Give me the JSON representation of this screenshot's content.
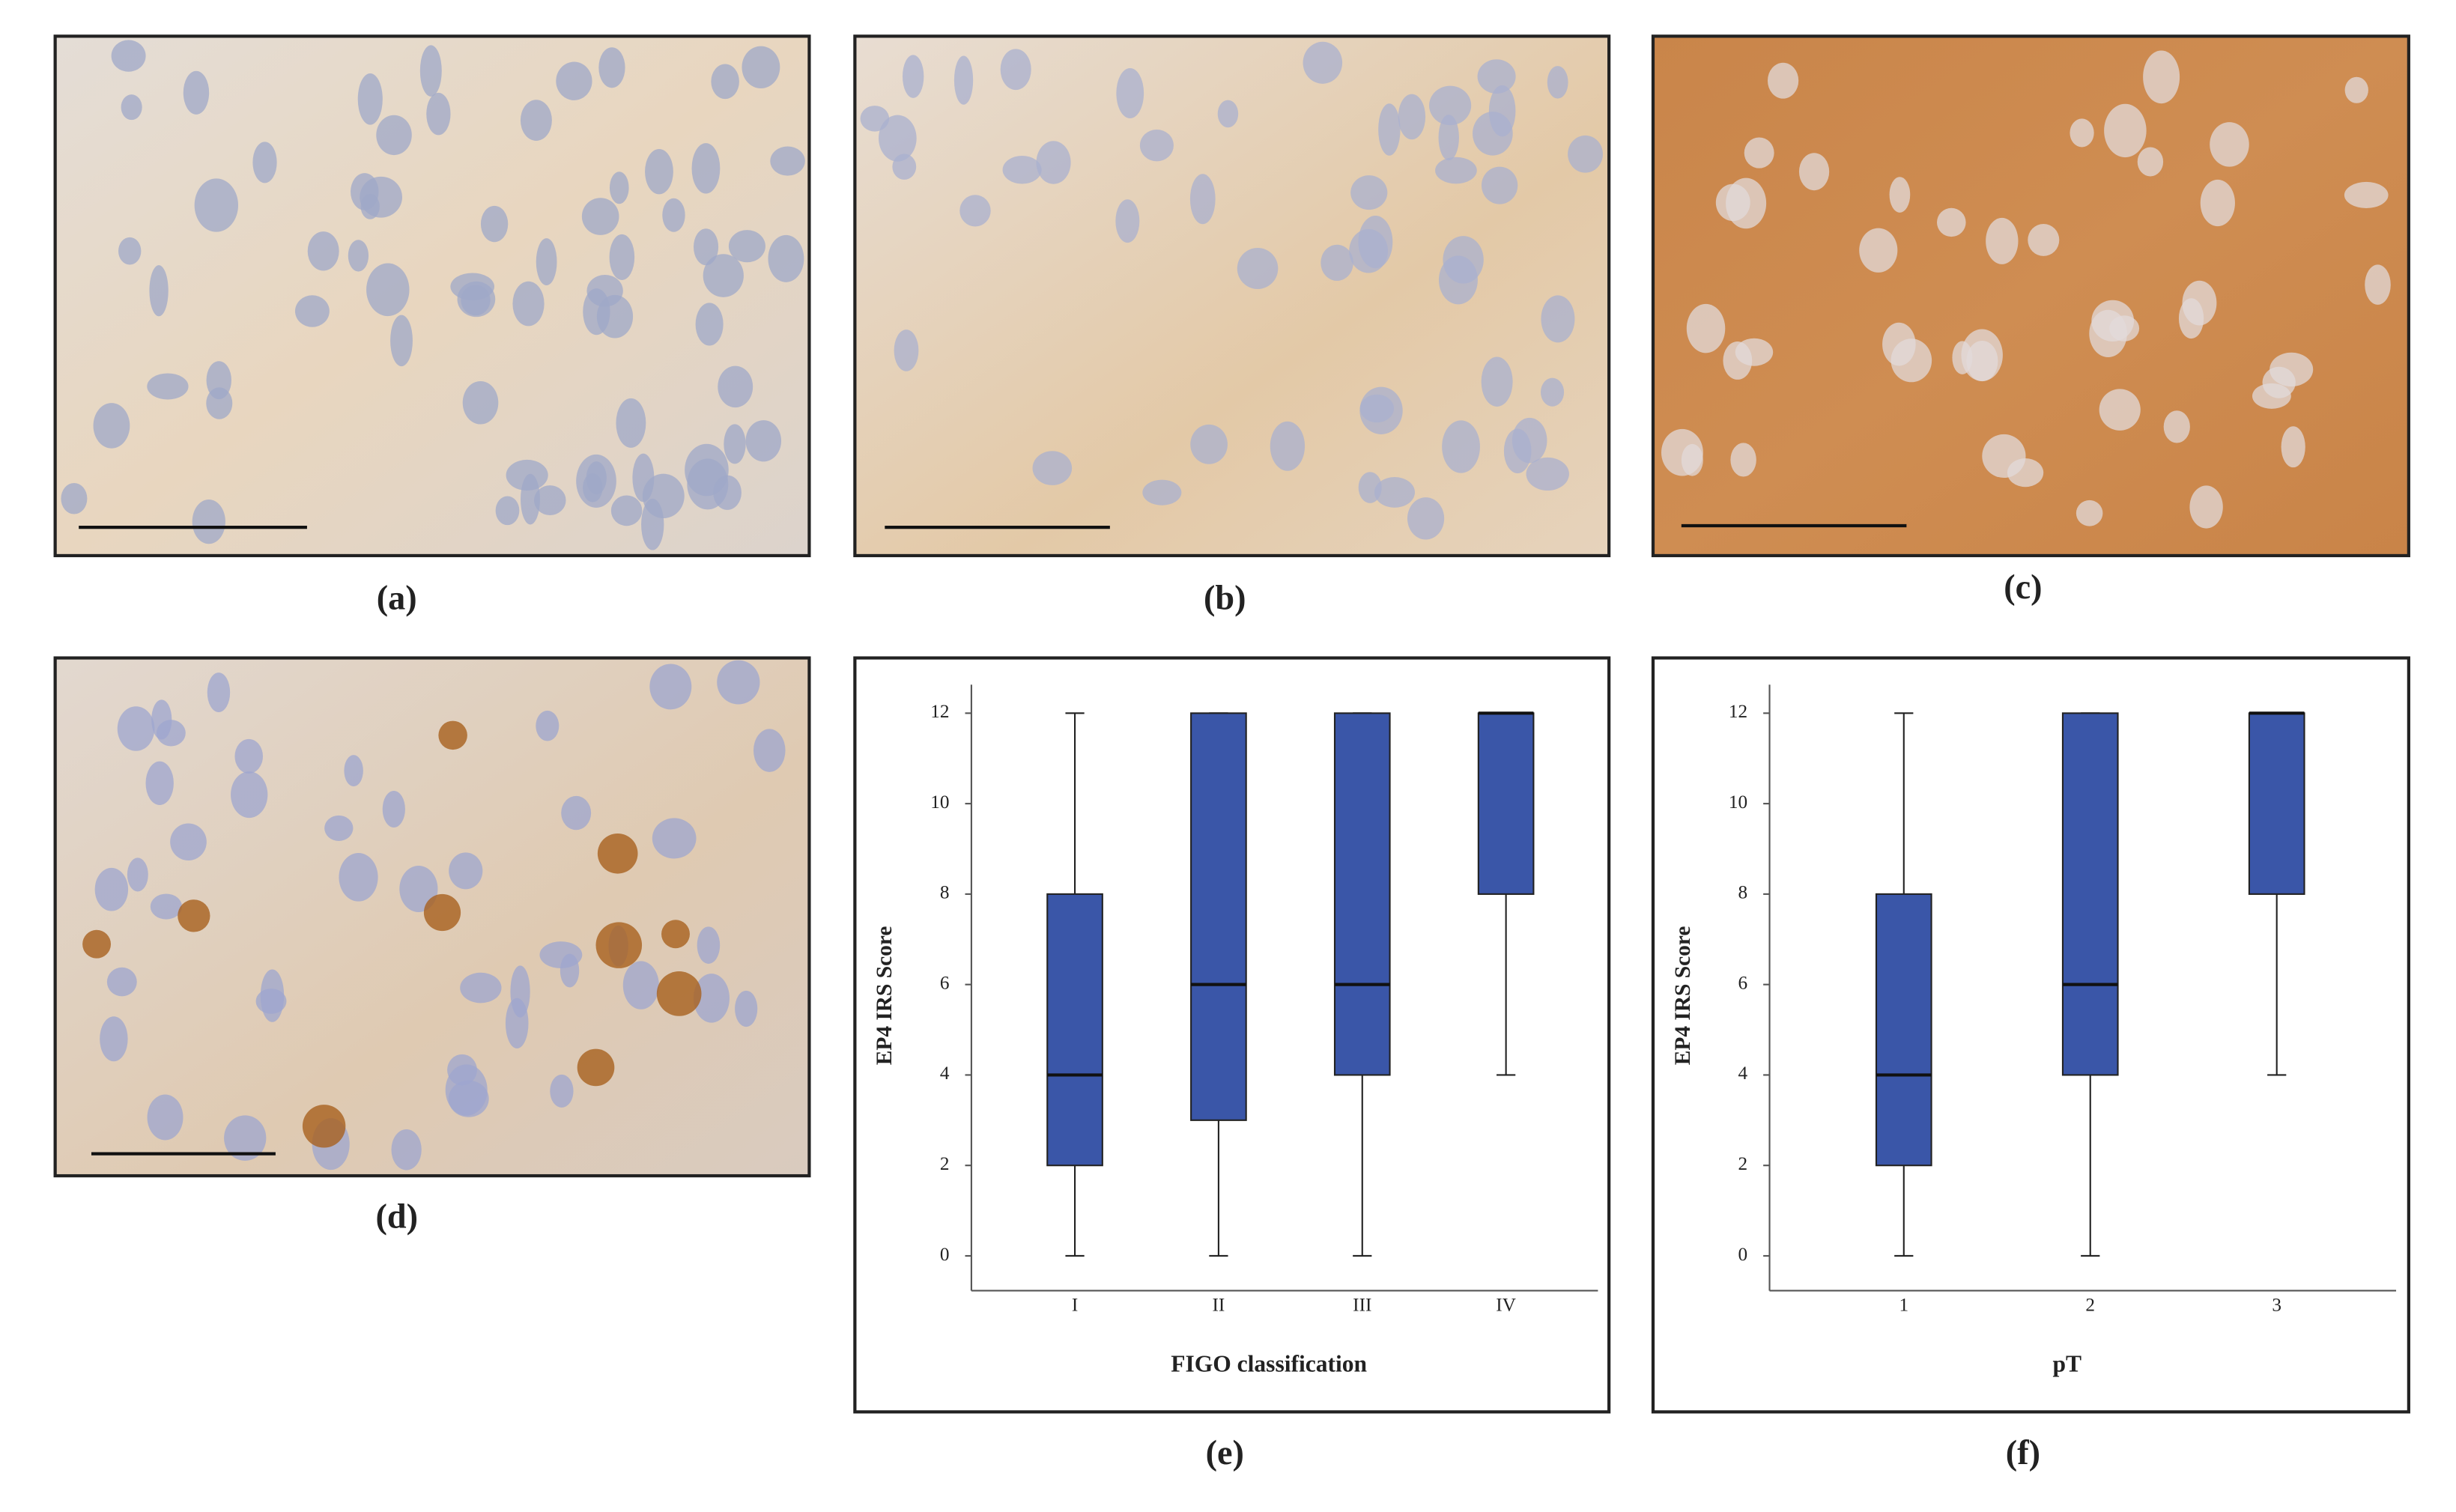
{
  "panel_labels": [
    "(a)",
    "(b)",
    "(c)",
    "(d)",
    "(e)",
    "(f)"
  ],
  "chart_data": [
    {
      "type": "box",
      "y_label": "EP4 IRS Score",
      "x_label": "FIGO classification",
      "categories": [
        "I",
        "II",
        "III",
        "IV"
      ],
      "color": "#3a56a8",
      "min": [
        0,
        0,
        0,
        4
      ],
      "q1": [
        2,
        3,
        4,
        8
      ],
      "median": [
        4,
        6,
        6,
        12
      ],
      "q3": [
        8,
        12,
        12,
        12
      ],
      "max": [
        12,
        12,
        12,
        12
      ],
      "ylim": [
        -0.77,
        12.63
      ],
      "yticks": [
        0,
        2,
        4,
        6,
        8,
        10,
        12
      ]
    },
    {
      "type": "box",
      "y_label": "EP4 IRS Score",
      "x_label": "pT",
      "categories": [
        "1",
        "2",
        "3"
      ],
      "color": "#3a56a8",
      "min": [
        0,
        0,
        4
      ],
      "q1": [
        2,
        4,
        8
      ],
      "median": [
        4,
        6,
        12
      ],
      "q3": [
        8,
        12,
        12
      ],
      "max": [
        12,
        12,
        12
      ],
      "ylim": [
        -0.77,
        12.63
      ],
      "yticks": [
        0,
        2,
        4,
        6,
        8,
        10,
        12
      ]
    }
  ]
}
